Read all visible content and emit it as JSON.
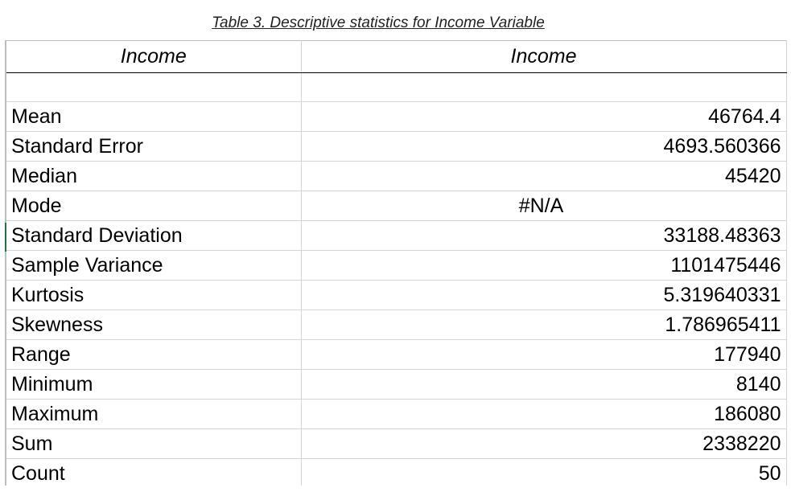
{
  "caption": "Table 3. Descriptive statistics for Income Variable",
  "table": {
    "headers": [
      "Income",
      "Income"
    ],
    "rows": [
      {
        "label": "",
        "value": ""
      },
      {
        "label": "Mean",
        "value": "46764.4"
      },
      {
        "label": "Standard Error",
        "value": "4693.560366"
      },
      {
        "label": "Median",
        "value": "45420"
      },
      {
        "label": "Mode",
        "value": "#N/A"
      },
      {
        "label": "Standard Deviation",
        "value": "33188.48363"
      },
      {
        "label": "Sample Variance",
        "value": "1101475446"
      },
      {
        "label": "Kurtosis",
        "value": "5.319640331"
      },
      {
        "label": "Skewness",
        "value": "1.786965411"
      },
      {
        "label": "Range",
        "value": "177940"
      },
      {
        "label": "Minimum",
        "value": "8140"
      },
      {
        "label": "Maximum",
        "value": "186080"
      },
      {
        "label": "Sum",
        "value": "2338220"
      },
      {
        "label": "Count",
        "value": "50"
      }
    ]
  },
  "colors": {
    "gridline": "#d4d4d4",
    "header_rule": "#000000",
    "active_cell": "#217346"
  }
}
